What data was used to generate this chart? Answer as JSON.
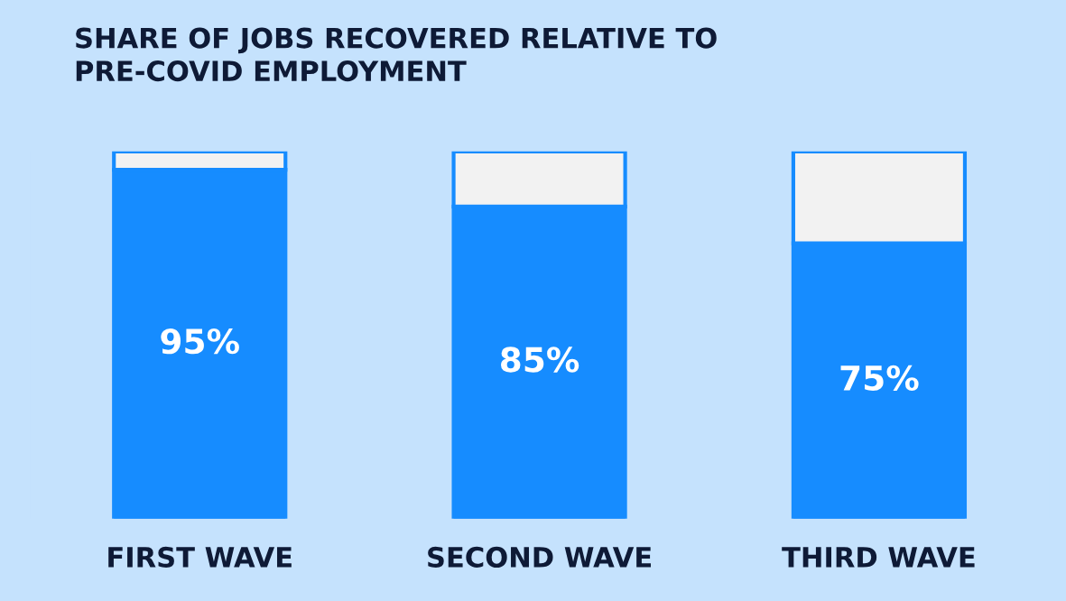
{
  "chart_data": {
    "type": "bar",
    "title": "SHARE OF JOBS RECOVERED RELATIVE TO\nPRE-COVID EMPLOYMENT",
    "categories": [
      "FIRST WAVE",
      "SECOND WAVE",
      "THIRD WAVE"
    ],
    "stacked": true,
    "series": [
      {
        "color": "#168cff",
        "values": [
          95,
          85,
          75
        ],
        "value_labels": [
          "95%",
          "85%",
          "75%"
        ]
      },
      {
        "color": "#f2f2f2",
        "values": [
          5,
          15,
          25
        ]
      }
    ],
    "ylim": [
      0,
      100
    ],
    "tick_labels": "x"
  }
}
